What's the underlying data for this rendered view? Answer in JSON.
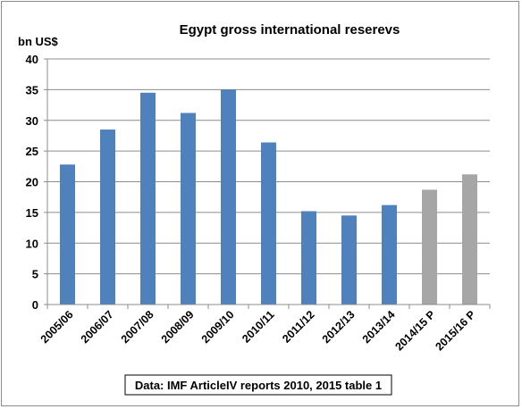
{
  "chart_data": {
    "type": "bar",
    "title": "Egypt gross international reserevs",
    "ylabel": "bn US$",
    "xlabel": "",
    "ylim": [
      0,
      40
    ],
    "yticks": [
      0,
      5,
      10,
      15,
      20,
      25,
      30,
      35,
      40
    ],
    "grid": true,
    "categories": [
      "2005/06",
      "2006/07",
      "2007/08",
      "2008/09",
      "2009/10",
      "2010/11",
      "2011/12",
      "2012/13",
      "2013/14",
      "2014/15 P",
      "2015/16 P"
    ],
    "values": [
      22.8,
      28.5,
      34.5,
      31.2,
      35.0,
      26.4,
      15.2,
      14.5,
      16.2,
      18.7,
      21.2
    ],
    "colors": [
      "#4f81bd",
      "#4f81bd",
      "#4f81bd",
      "#4f81bd",
      "#4f81bd",
      "#4f81bd",
      "#4f81bd",
      "#4f81bd",
      "#4f81bd",
      "#a6a6a6",
      "#a6a6a6"
    ],
    "source_note": "Data: IMF ArticleIV reports 2010, 2015 table 1"
  }
}
